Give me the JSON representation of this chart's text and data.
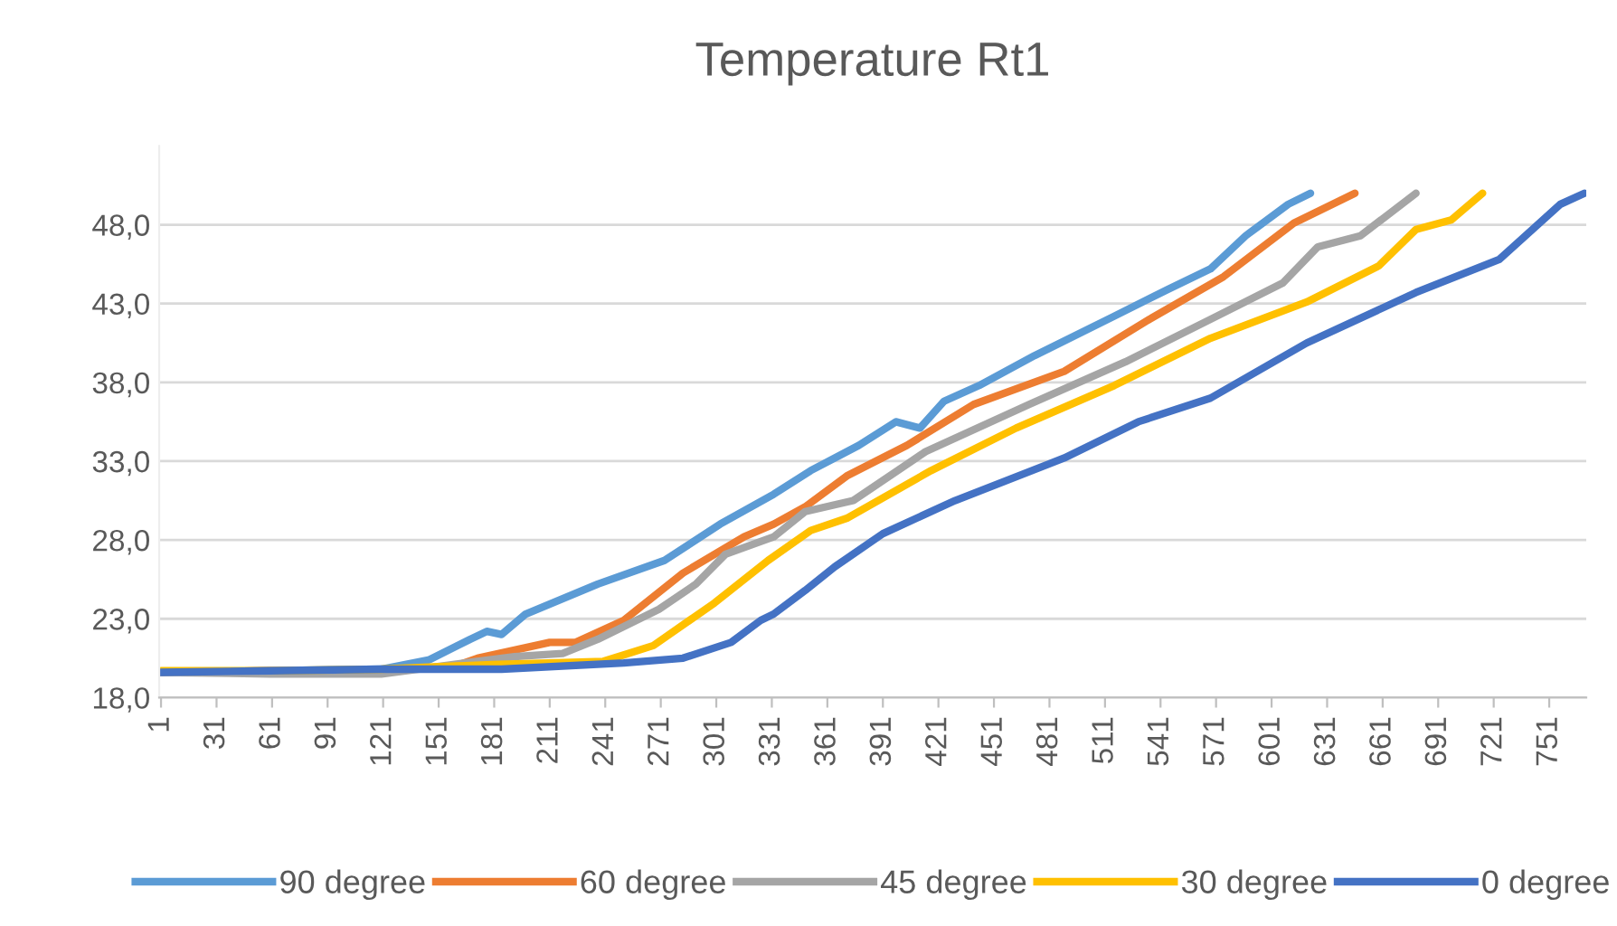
{
  "chart_data": {
    "type": "line",
    "title": "Temperature Rt1",
    "xlim": [
      0,
      771
    ],
    "xticks": [
      1,
      31,
      61,
      91,
      121,
      151,
      181,
      211,
      241,
      271,
      301,
      331,
      361,
      391,
      421,
      451,
      481,
      511,
      541,
      571,
      601,
      631,
      661,
      691,
      721,
      751
    ],
    "ylim": [
      18,
      53
    ],
    "yticks": [
      {
        "value": 18,
        "label": "18,0"
      },
      {
        "value": 23,
        "label": "23,0"
      },
      {
        "value": 28,
        "label": "28,0"
      },
      {
        "value": 33,
        "label": "33,0"
      },
      {
        "value": 38,
        "label": "38,0"
      },
      {
        "value": 43,
        "label": "43,0"
      },
      {
        "value": 48,
        "label": "48,0"
      }
    ],
    "grid": "y",
    "legend": "bottom",
    "marker": "none",
    "line_style": "solid",
    "series": [
      {
        "name": "90 degree",
        "color": "#5b9bd5",
        "x": [
          1,
          60,
          120,
          146,
          168,
          177,
          185,
          198,
          237,
          273,
          303,
          332,
          352,
          378,
          398,
          411,
          424,
          443,
          473,
          516,
          545,
          568,
          587,
          610,
          622
        ],
        "values": [
          19.6,
          19.7,
          19.8,
          20.4,
          21.7,
          22.2,
          22.0,
          23.3,
          25.2,
          26.7,
          29.0,
          30.9,
          32.4,
          34.0,
          35.5,
          35.1,
          36.8,
          37.8,
          39.7,
          42.2,
          43.9,
          45.2,
          47.3,
          49.3,
          50.0
        ]
      },
      {
        "name": "60 degree",
        "color": "#ed7d31",
        "x": [
          1,
          60,
          120,
          160,
          172,
          211,
          225,
          251,
          283,
          316,
          332,
          349,
          372,
          404,
          440,
          489,
          535,
          575,
          613,
          646
        ],
        "values": [
          19.6,
          19.7,
          19.7,
          20.0,
          20.5,
          21.5,
          21.5,
          22.9,
          25.9,
          28.2,
          29.0,
          30.1,
          32.1,
          34.0,
          36.6,
          38.7,
          42.0,
          44.7,
          48.1,
          50.0
        ]
      },
      {
        "name": "45 degree",
        "color": "#a5a5a5",
        "x": [
          1,
          60,
          120,
          192,
          218,
          237,
          270,
          290,
          306,
          332,
          349,
          375,
          414,
          470,
          522,
          568,
          607,
          626,
          649,
          679
        ],
        "values": [
          19.6,
          19.5,
          19.5,
          20.6,
          20.8,
          21.7,
          23.6,
          25.2,
          27.1,
          28.2,
          29.8,
          30.5,
          33.6,
          36.6,
          39.3,
          42.0,
          44.3,
          46.6,
          47.3,
          50.0
        ]
      },
      {
        "name": "30 degree",
        "color": "#ffc000",
        "x": [
          1,
          60,
          120,
          180,
          240,
          251,
          267,
          300,
          329,
          352,
          372,
          417,
          463,
          516,
          568,
          620,
          659,
          679,
          698,
          715
        ],
        "values": [
          19.7,
          19.7,
          19.8,
          20.1,
          20.3,
          20.7,
          21.3,
          24.0,
          26.7,
          28.6,
          29.4,
          32.4,
          35.1,
          37.8,
          40.8,
          43.1,
          45.4,
          47.7,
          48.3,
          50.0
        ]
      },
      {
        "name": "0 degree",
        "color": "#4472c4",
        "x": [
          1,
          60,
          120,
          185,
          251,
          283,
          309,
          325,
          332,
          349,
          365,
          391,
          430,
          489,
          529,
          568,
          620,
          679,
          724,
          757,
          770
        ],
        "values": [
          19.6,
          19.7,
          19.8,
          19.8,
          20.2,
          20.5,
          21.5,
          22.9,
          23.3,
          24.8,
          26.3,
          28.4,
          30.5,
          33.2,
          35.5,
          37.0,
          40.5,
          43.7,
          45.8,
          49.3,
          50.0
        ]
      }
    ]
  }
}
